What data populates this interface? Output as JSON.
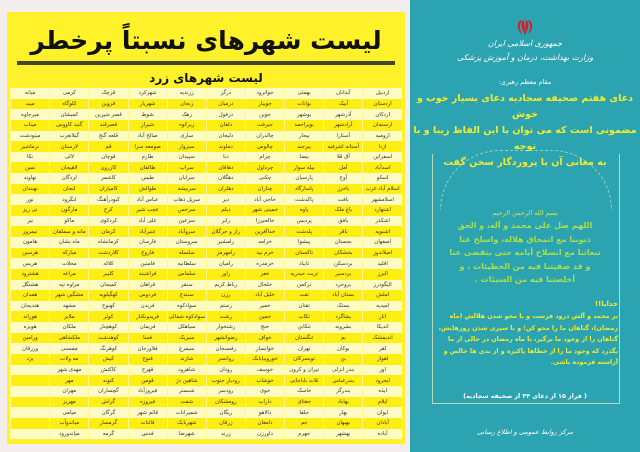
{
  "left": {
    "title": "لیست شهرهای نسبتاً پرخطر",
    "subtitle": "لیست شهرهای زرد",
    "row_colors": [
      "#fffbc4",
      "#ffee12"
    ],
    "rows": [
      [
        "اردبیل",
        "آبدانان",
        "بهمئی",
        "جوانرود",
        "درگز",
        "زرندیه",
        "شهرکرد",
        "قرچک",
        "کرمی",
        "میانه"
      ],
      [
        "اردستان",
        "آبیک",
        "بوانات",
        "جویبار",
        "درمیان",
        "زنجان",
        "شهریار",
        "قزوین",
        "کلوگاه",
        "میبد"
      ],
      [
        "اردکان",
        "آذرشهر",
        "بوشهر",
        "جوین",
        "دزفول",
        "زهک",
        "شوط",
        "قصر شیرین",
        "کمیشان",
        "میرجاوه"
      ],
      [
        "ارسنجان",
        "آزادشهر",
        "بویراحمد",
        "جیرفت",
        "دلفان",
        "زیرکوه",
        "شیراز",
        "قصرقند",
        "گنبد کاووس",
        "میناب"
      ],
      [
        "ارومیه",
        "آستارا",
        "بیجار",
        "چالدران",
        "دلیجان",
        "ساری",
        "صالح آباد",
        "قلعه گنج",
        "گیلانغرب",
        "مینودشت"
      ],
      [
        "ازنا",
        "آستانه اشرفیه",
        "بیرجند",
        "چالوس",
        "دماوند",
        "سبزوار",
        "صومعه سرا",
        "قم",
        "لارستان",
        "نرماشیر"
      ],
      [
        "اسفراین",
        "آق قلا",
        "بیضا",
        "چرام",
        "دنا",
        "سپیدان",
        "طارم",
        "قوچان",
        "لالی",
        "نکا"
      ],
      [
        "اسدآباد",
        "آمل",
        "بیله سوار",
        "چرداول",
        "دهاقان",
        "سراب",
        "طالقان",
        "کازرون",
        "لاهیجان",
        "نمین"
      ],
      [
        "اسکو",
        "آوج",
        "پارسیان",
        "چکنی",
        "دهگلان",
        "سرایان",
        "طبس",
        "کاشمر",
        "لردگان",
        "نهاوند"
      ],
      [
        "اسلام آباد غرب",
        "باخرز",
        "پاسارگاد",
        "چناران",
        "دهلران",
        "سربیشه",
        "طوالش",
        "کامیاران",
        "لنجان",
        "نهبندان"
      ],
      [
        "اسلامشهر",
        "بافت",
        "پاکدشت",
        "حاجی آباد",
        "دیر",
        "سرپل ذهاب",
        "عباس آباد",
        "کبودرآهنگ",
        "لنگرود",
        "نور"
      ],
      [
        "اشتهارد",
        "باغ ملک",
        "پاوه",
        "خمینی شهر",
        "دیلم",
        "سرخس",
        "عجب شیر",
        "کرج",
        "مارگون",
        "نی ریز"
      ],
      [
        "اشکذر",
        "بافق",
        "پردیس",
        "خالخیرزا",
        "رابر",
        "سرعین",
        "علی آباد",
        "کردکوی",
        "ماکو",
        "نیر"
      ],
      [
        "اشنویه",
        "باقر",
        "پلدشت",
        "خداآفرین",
        "راز و جرگلان",
        "سروآباد",
        "عنبرآباد",
        "کرمان",
        "مانه و سملقان",
        "نیمروز"
      ],
      [
        "اصفهان",
        "بجستان",
        "پیشوا",
        "خرامه",
        "رامشیر",
        "سروستان",
        "فارسان",
        "کرمانشاه",
        "ماه نشان",
        "هامون"
      ],
      [
        "اصلاندوز",
        "بخشکان",
        "تاکستان",
        "خرم بید",
        "رامهرمز",
        "سلسله",
        "فاروج",
        "کلاردشت",
        "مبارکه",
        "هرسین"
      ],
      [
        "اقلید",
        "بردسکن",
        "تایباد",
        "خرمدره",
        "رامیان",
        "سلطانیه",
        "فامنین",
        "کلاله",
        "محلات",
        "هریس"
      ],
      [
        "البرز",
        "بردسیر",
        "تربت حیدریه",
        "خفر",
        "راور",
        "سلماس",
        "فراشبند",
        "کلیبر",
        "مراغه",
        "هشترود"
      ],
      [
        "الیگودرز",
        "بروجرد",
        "ترکمن",
        "خلخال",
        "رباط کریم",
        "سنقر",
        "فراهان",
        "کمیجان",
        "مراوه تپه",
        "هشتگل"
      ],
      [
        "املش",
        "بستان آباد",
        "تفت",
        "خلیل آباد",
        "رزن",
        "سنندج",
        "فردوس",
        "کهگیلویه",
        "مشگین شهر",
        "همدان"
      ],
      [
        "امیدیه",
        "بستک",
        "تفتان",
        "خمیر",
        "رستم",
        "سوادکوه",
        "فریدن",
        "کهنوج",
        "مشهد",
        "هندیجان"
      ],
      [
        "انار",
        "بشاگرد",
        "تکاب",
        "خمین",
        "رشت",
        "سوادکوه شمالی",
        "فریدونکنار",
        "کوثر",
        "ملایر",
        "هوراند"
      ],
      [
        "اندیکا",
        "بشرویه",
        "تنکابن",
        "خنج",
        "رشتخوار",
        "سیاهکل",
        "فریمان",
        "کوهچنار",
        "ملکان",
        "هویزه"
      ],
      [
        "اندیمشک",
        "بم",
        "تنگستان",
        "خواف",
        "رضوانشهر",
        "سیریک",
        "فسا",
        "کوهدشت",
        "ملکشاهی",
        "ورامین"
      ],
      [
        "اهر",
        "بوکان",
        "تهران",
        "خوانسار",
        "رفسنجان",
        "سیمرغ",
        "فلاورجان",
        "کوهرنگ",
        "ممسنی",
        "ورزقان"
      ],
      [
        "اهواز",
        "بن",
        "تویسرکان",
        "خوروبیابانک",
        "روانسر",
        "شازند",
        "قنوج",
        "کیش",
        "مه ولات",
        "یزد"
      ],
      [
        "اوز",
        "بندر انزلی",
        "تیران و کرون",
        "خوسف",
        "رودان",
        "شاهرود",
        "قهرج",
        "کاکتش",
        "مهدی شهر",
        ""
      ],
      [
        "ایجرود",
        "بندرعباس",
        "ثلاث باباجانی",
        "خوشاب",
        "رودبار جنوب",
        "شاهین دژ",
        "قومن",
        "کتوند",
        "مهر",
        ""
      ],
      [
        "ایذه",
        "بندرگز",
        "جاسک",
        "خوی",
        "رودسر",
        "شبستر",
        "فیروزآباد",
        "گچساران",
        "مهران",
        ""
      ],
      [
        "ایلام",
        "بهاباد",
        "جغتای",
        "داراب",
        "رومشکان",
        "شفت",
        "فیروزه",
        "گراش",
        "مهریز",
        ""
      ],
      [
        "ایوان",
        "بهار",
        "جلفا",
        "دالاهو",
        "ریگان",
        "شمیرانات",
        "قائم شهر",
        "گرگان",
        "میامی",
        ""
      ],
      [
        "آبادان",
        "بهبهان",
        "جم",
        "دامغان",
        "زرقان",
        "شهربابک",
        "قائنات",
        "گرمسار",
        "میاندوآب",
        ""
      ],
      [
        "آباده",
        "بهشهر",
        "جهرم",
        "داورزن",
        "زرند",
        "شهرضا",
        "قدس",
        "گرمه",
        "میاندورود",
        ""
      ]
    ]
  },
  "right": {
    "bg_color": "#2ba3b1",
    "emblem_icon": "iran-emblem-icon",
    "header1": "جمهوری اسلامی ایران",
    "header2": "وزارت بهداشت، درمان و آموزش پزشکی",
    "speaker": "مقام معظم رهبری:",
    "quote": [
      "دعای هفتم صحیفه سجادیه دعای بسیار خوب و خوش",
      "مضمونی است که می توان با این الفاظ زیبا و با توجه",
      "به معانی آن با پروردگار سخن گفت"
    ],
    "basmala": "بسم الله الرحمن الرحیم",
    "arabic": [
      "اللهم صل علی محمد و آله، و الحق",
      "ذنوبنا مع انمحاق هلاله، واسلخ عنا",
      "تبعاتنا مع انسلاخ أیامه حتی ینقضی عنا",
      "و قد صفیتنا فیه من الخطیئات ، و",
      "أخلصتنا فیه من السیئات ."
    ],
    "khodaya": "خدایا!!",
    "translation": [
      "بر محمد و آلش درود فرست و با محو شدن هلالش (ماه",
      "رمضان)، گناهان ما را محو کن؛ و با سپری شدن روزهایش،",
      "گناهان را از وجود ما برگیر، تا ماه رمضان در حالی از ما",
      "بگذرد که وجود ما را از خطاها پاکیزه و از بدی ها خالص و",
      "آراسته فرموده باشی."
    ],
    "source": "( فراز ۱۵ از دعای ۴۴ از صحیفه سجادیه)",
    "footer": "مرکز روابط عمومی و اطلاع رسانی"
  }
}
